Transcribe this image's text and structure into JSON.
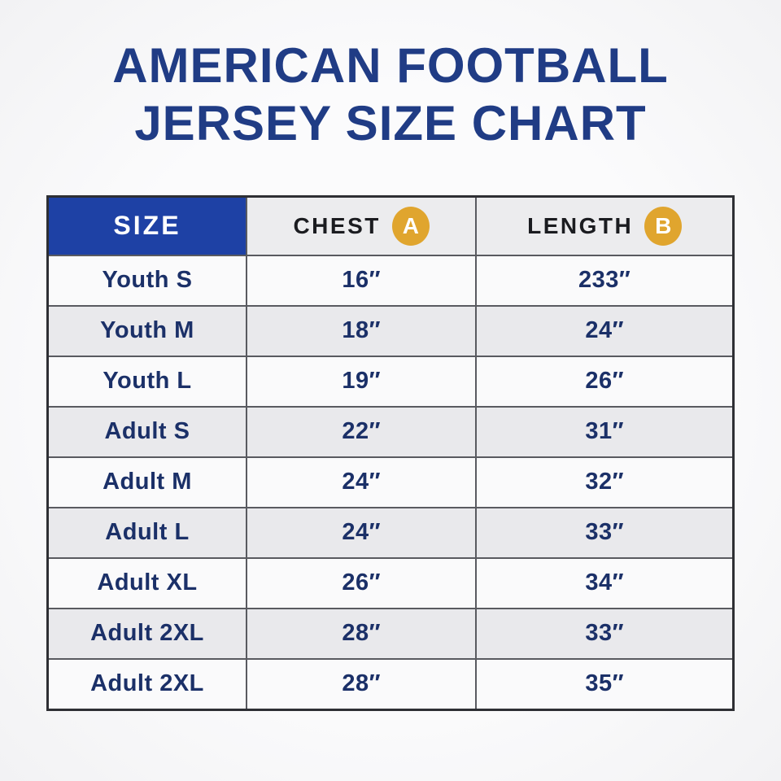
{
  "title": {
    "line1": "AMERICAN FOOTBALL",
    "line2": "JERSEY SIZE CHART"
  },
  "table": {
    "headers": {
      "size": "SIZE",
      "chest": "CHEST",
      "chest_badge": "A",
      "length": "LENGTH",
      "length_badge": "B"
    },
    "rows": [
      {
        "size": "Youth S",
        "chest": "16″",
        "length": "233″"
      },
      {
        "size": "Youth M",
        "chest": "18″",
        "length": "24″"
      },
      {
        "size": "Youth L",
        "chest": "19″",
        "length": "26″"
      },
      {
        "size": "Adult S",
        "chest": "22″",
        "length": "31″"
      },
      {
        "size": "Adult M",
        "chest": "24″",
        "length": "32″"
      },
      {
        "size": "Adult L",
        "chest": "24″",
        "length": "33″"
      },
      {
        "size": "Adult XL",
        "chest": "26″",
        "length": "34″"
      },
      {
        "size": "Adult 2XL",
        "chest": "28″",
        "length": "33″"
      },
      {
        "size": "Adult 2XL",
        "chest": "28″",
        "length": "35″"
      }
    ]
  },
  "colors": {
    "title_navy": "#203c85",
    "header_blue": "#1e41a5",
    "badge_gold": "#e0a52e",
    "row_text_navy": "#1b3068",
    "header_text_dark": "#1b1c20",
    "zebra_gray": "#e9e9ec",
    "row_white": "#fafafb",
    "border_dark": "#2e2f34"
  },
  "chart_data": {
    "type": "table",
    "title": "AMERICAN FOOTBALL JERSEY SIZE CHART",
    "columns": [
      "SIZE",
      "CHEST A",
      "LENGTH B"
    ],
    "rows": [
      [
        "Youth S",
        "16″",
        "233″"
      ],
      [
        "Youth M",
        "18″",
        "24″"
      ],
      [
        "Youth L",
        "19″",
        "26″"
      ],
      [
        "Adult S",
        "22″",
        "31″"
      ],
      [
        "Adult M",
        "24″",
        "32″"
      ],
      [
        "Adult L",
        "24″",
        "33″"
      ],
      [
        "Adult XL",
        "26″",
        "34″"
      ],
      [
        "Adult 2XL",
        "28″",
        "33″"
      ],
      [
        "Adult 2XL",
        "28″",
        "35″"
      ]
    ]
  }
}
